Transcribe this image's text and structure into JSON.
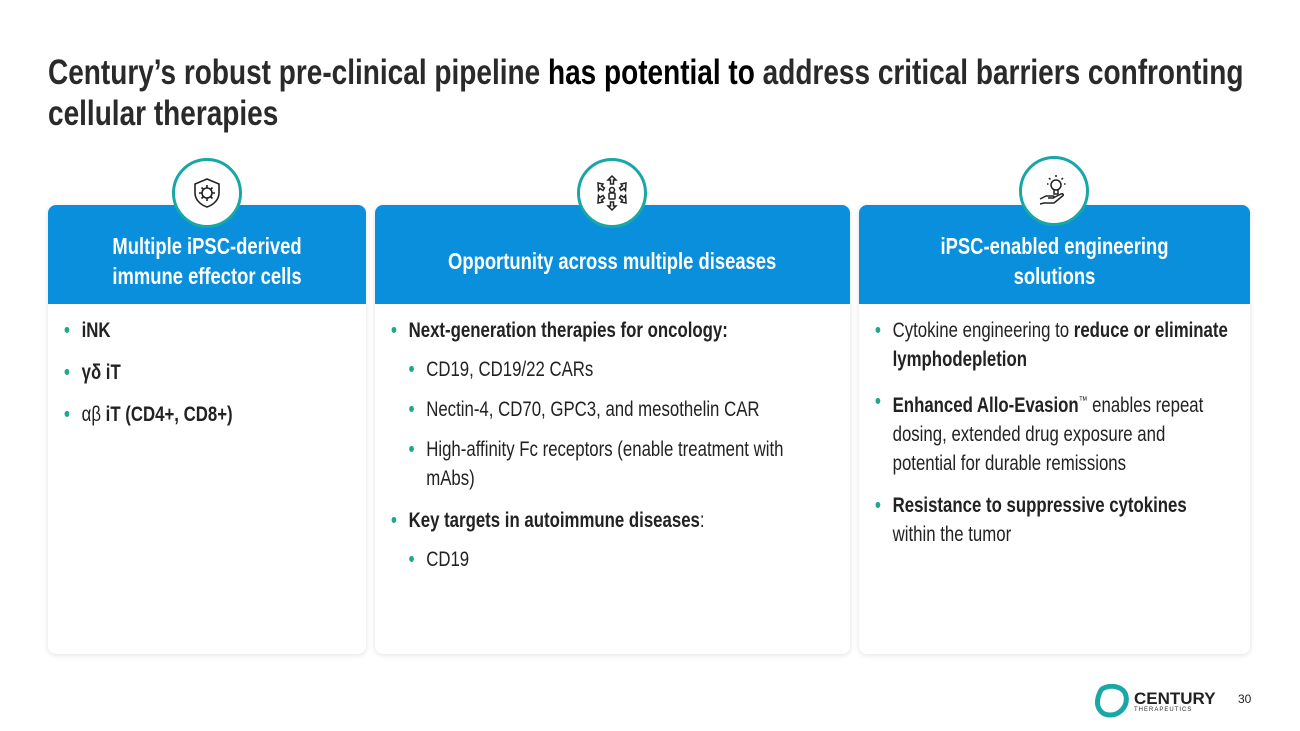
{
  "title": {
    "part1": "Century’s robust pre-clinical pipeline ",
    "part2": "has potential to",
    "part3": " address critical barriers confronting cellular therapies"
  },
  "cards": [
    {
      "icon": "shield-virus-icon",
      "header": "Multiple iPSC-derived immune effector cells",
      "items": [
        "iNK",
        "γδ iT",
        "αβ",
        "iT (CD4+, CD8+)"
      ]
    },
    {
      "icon": "arrows-out-person-icon",
      "header": "Opportunity across multiple diseases",
      "items": [
        "Next-generation therapies for oncology:",
        "CD19, CD19/22 CARs",
        "Nectin-4, CD70, GPC3, and mesothelin CAR",
        "High-affinity Fc receptors (enable treatment with mAbs)",
        "Key targets in autoimmune diseases",
        ":",
        "CD19"
      ]
    },
    {
      "icon": "lightbulb-hand-icon",
      "header": "iPSC-enabled engineering solutions",
      "items": [
        "Cytokine engineering to ",
        "reduce or eliminate lymphodepletion",
        "Enhanced Allo-Evasion",
        "™",
        " enables repeat dosing, extended drug exposure and potential for durable remissions",
        "Resistance to suppressive cytokines",
        " within the tumor"
      ]
    }
  ],
  "footer": {
    "logo_name": "CENTURY",
    "logo_sub": "THERAPEUTICS",
    "page": "30"
  },
  "colors": {
    "header_blue": "#0a8fdc",
    "bullet": "#1fa88b",
    "icon_ring": "#19a6a6"
  }
}
